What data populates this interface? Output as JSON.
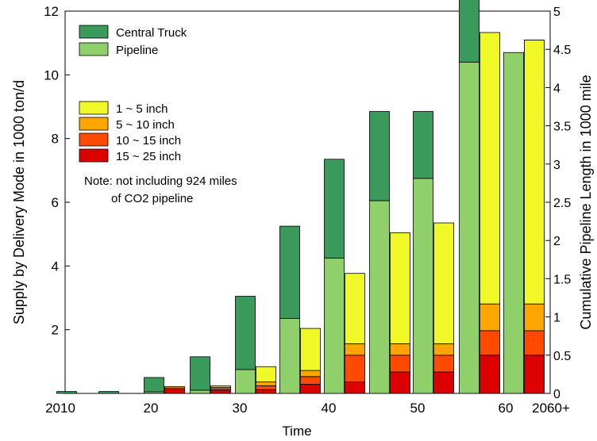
{
  "chart_data": {
    "type": "bar",
    "xlabel": "Time",
    "ylabel_left": "Supply by Delivery Mode in 1000 ton/d",
    "ylabel_right": "Cumulative Pipeline Length in 1000 mile",
    "x_tick_labels": [
      "2010",
      "20",
      "30",
      "40",
      "50",
      "60",
      "2060+"
    ],
    "ylim_left": [
      0,
      12
    ],
    "ylim_right": [
      0,
      5
    ],
    "y_left_ticks": [
      "2",
      "4",
      "6",
      "8",
      "10",
      "12"
    ],
    "y_right_ticks": [
      "0",
      "0.5",
      "1",
      "1.5",
      "2",
      "2.5",
      "3",
      "3.5",
      "4",
      "4.5",
      "5"
    ],
    "periods": [
      "2010",
      "2015",
      "2020",
      "2025",
      "2030",
      "2035",
      "2040",
      "2045",
      "2050",
      "2055",
      "2060",
      "2060+"
    ],
    "supply_series": [
      {
        "name": "Central Truck",
        "color": "#3a9a5c",
        "values": [
          0.06,
          0.06,
          0.45,
          1.05,
          2.3,
          2.9,
          3.1,
          2.8,
          2.1,
          3.6,
          0,
          0
        ]
      },
      {
        "name": "Pipeline",
        "color": "#8fd06a",
        "values": [
          0,
          0,
          0.05,
          0.1,
          0.75,
          2.35,
          4.25,
          6.05,
          6.75,
          10.4,
          10.7,
          0
        ]
      }
    ],
    "pipeline_length_series": [
      {
        "name": "1 ~ 5 inch",
        "color": "#f0f828",
        "values": [
          0,
          0,
          0,
          0.02,
          0.2,
          0.55,
          0.92,
          1.45,
          1.58,
          3.55,
          3.45,
          3.45
        ]
      },
      {
        "name": "5 ~ 10 inch",
        "color": "#ffa500",
        "values": [
          0,
          0,
          0.02,
          0.02,
          0.05,
          0.08,
          0.15,
          0.15,
          0.15,
          0.35,
          0.35,
          0.35
        ]
      },
      {
        "name": "10 ~ 15 inch",
        "color": "#ff4a00",
        "values": [
          0,
          0,
          0.02,
          0.02,
          0.05,
          0.1,
          0.35,
          0.22,
          0.22,
          0.32,
          0.32,
          0.32
        ]
      },
      {
        "name": "15 ~ 25 inch",
        "color": "#dd0000",
        "values": [
          0,
          0,
          0.05,
          0.04,
          0.05,
          0.12,
          0.15,
          0.28,
          0.28,
          0.5,
          0.5,
          0.5
        ]
      }
    ],
    "note": [
      "Note: not including 924 miles",
      "of CO2 pipeline"
    ]
  }
}
